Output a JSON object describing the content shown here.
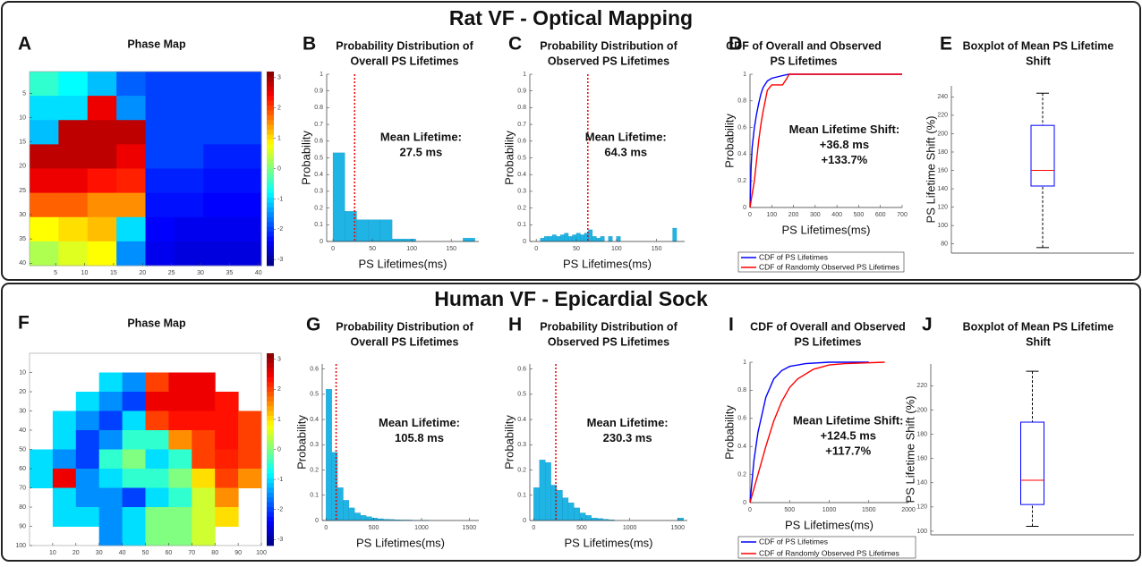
{
  "sections": [
    "Rat VF - Optical Mapping",
    "Human VF - Epicardial Sock"
  ],
  "chart_data": [
    {
      "type": "heatmap",
      "panel_label": "A",
      "title": [
        "Phase Map"
      ],
      "xlim": [
        0.5,
        40.5
      ],
      "ylim": [
        0.5,
        40.5
      ],
      "xticks": [
        5,
        10,
        15,
        20,
        25,
        30,
        35,
        40
      ],
      "yticks": [
        5,
        10,
        15,
        20,
        25,
        30,
        35,
        40
      ],
      "clim": [
        -3.2,
        3.2
      ],
      "colorbar_ticks": [
        -3,
        -2,
        -1,
        0,
        1,
        2,
        3
      ],
      "values": [
        [
          -0.5,
          -0.8,
          -1.2,
          -1.8,
          -2,
          -2,
          -2,
          -2
        ],
        [
          -1,
          -1,
          2.5,
          -1.5,
          -2,
          -2,
          -2,
          -2
        ],
        [
          -1.2,
          2.8,
          2.8,
          2.8,
          -2,
          -2,
          -2,
          -2
        ],
        [
          2.8,
          2.8,
          2.8,
          2.5,
          -2,
          -2,
          -2.2,
          -2.2
        ],
        [
          2.5,
          2.5,
          2.3,
          2.2,
          -2.2,
          -2.2,
          -2.3,
          -2.3
        ],
        [
          1.8,
          1.8,
          1.5,
          1.5,
          -2.3,
          -2.3,
          -2.4,
          -2.4
        ],
        [
          0.8,
          1,
          1.2,
          -1,
          -2.4,
          -2.5,
          -2.5,
          -2.5
        ],
        [
          0.3,
          0.6,
          0.8,
          -1.5,
          -2.5,
          -2.6,
          -2.6,
          -2.6
        ]
      ]
    },
    {
      "type": "histogram",
      "panel_label": "B",
      "title": [
        "Probability Distribution of",
        "Overall PS Lifetimes"
      ],
      "xlabel": "PS Lifetimes(ms)",
      "ylabel": "Probability",
      "color": "#1fb4e4",
      "bins": [
        0,
        15,
        30,
        45,
        60,
        75,
        90,
        105,
        120,
        135,
        150,
        165,
        180
      ],
      "values": [
        0.53,
        0.18,
        0.13,
        0.13,
        0.13,
        0.015,
        0.015,
        0,
        0,
        0,
        0,
        0.02
      ],
      "xlim": [
        -8,
        185
      ],
      "xticks": [
        0,
        50,
        100,
        150
      ],
      "ylim": [
        0,
        1
      ],
      "yticks": [
        0,
        0.1,
        0.2,
        0.3,
        0.4,
        0.5,
        0.6,
        0.7,
        0.8,
        0.9,
        1
      ],
      "mean": {
        "value": 27.5,
        "label": "27.5 ms"
      },
      "annotation": "Mean Lifetime:"
    },
    {
      "type": "histogram",
      "panel_label": "C",
      "title": [
        "Probability Distribution of",
        "Observed PS Lifetimes"
      ],
      "xlabel": "PS Lifetimes(ms)",
      "ylabel": "Probability",
      "color": "#1fb4e4",
      "bins": [
        0,
        5,
        10,
        15,
        20,
        25,
        30,
        35,
        40,
        45,
        50,
        55,
        60,
        65,
        70,
        75,
        80,
        85,
        90,
        95,
        100,
        105,
        110,
        115,
        120,
        125,
        130,
        135,
        140,
        145,
        150,
        155,
        160,
        165,
        170,
        175,
        180
      ],
      "values": [
        0,
        0.02,
        0.03,
        0.03,
        0.04,
        0.03,
        0.04,
        0.05,
        0.03,
        0.04,
        0.05,
        0.04,
        0.05,
        0.07,
        0.03,
        0.02,
        0.03,
        0,
        0.03,
        0,
        0.03,
        0,
        0,
        0,
        0,
        0,
        0,
        0,
        0,
        0,
        0,
        0,
        0,
        0,
        0.08,
        0
      ],
      "xlim": [
        -8,
        185
      ],
      "xticks": [
        0,
        50,
        100,
        150
      ],
      "ylim": [
        0,
        1
      ],
      "yticks": [
        0,
        0.1,
        0.2,
        0.3,
        0.4,
        0.5,
        0.6,
        0.7,
        0.8,
        0.9,
        1
      ],
      "mean": {
        "value": 64.3,
        "label": "64.3 ms"
      },
      "annotation": "Mean Lifetime:"
    },
    {
      "type": "line",
      "panel_label": "D",
      "title": [
        "CDF of Overall and Observed",
        "PS Lifetimes"
      ],
      "xlabel": "PS Lifetimes(ms)",
      "ylabel": "Probability",
      "xlim": [
        0,
        700
      ],
      "xticks": [
        0,
        100,
        200,
        300,
        400,
        500,
        600,
        700
      ],
      "ylim": [
        0,
        1
      ],
      "yticks": [
        0,
        0.2,
        0.4,
        0.6,
        0.8,
        1
      ],
      "series": [
        {
          "name": "CDF of PS Lifetimes",
          "color": "#0000ff",
          "x": [
            0,
            5,
            10,
            20,
            30,
            40,
            50,
            60,
            80,
            100,
            150,
            180,
            700
          ],
          "values": [
            0,
            0.3,
            0.45,
            0.6,
            0.7,
            0.78,
            0.85,
            0.9,
            0.95,
            0.97,
            0.99,
            1,
            1
          ]
        },
        {
          "name": "CDF of Randomly Observed PS Lifetimes",
          "color": "#ff0000",
          "x": [
            0,
            10,
            20,
            30,
            40,
            50,
            60,
            70,
            80,
            100,
            120,
            150,
            170,
            180,
            700
          ],
          "values": [
            0,
            0.1,
            0.2,
            0.35,
            0.5,
            0.62,
            0.72,
            0.8,
            0.88,
            0.92,
            0.92,
            0.92,
            0.97,
            1,
            1
          ]
        }
      ],
      "annotation": [
        "Mean Lifetime Shift:",
        "+36.8 ms",
        "+133.7%"
      ]
    },
    {
      "type": "box",
      "panel_label": "E",
      "title": [
        "Boxplot of Mean PS Lifetime",
        "Shift"
      ],
      "ylabel": "PS Lifetime Shift (%)",
      "ylim": [
        70,
        252
      ],
      "yticks": [
        80,
        100,
        120,
        140,
        160,
        180,
        200,
        220,
        240
      ],
      "color": "#0000ff",
      "median_color": "#ff0000",
      "stats": {
        "min": 76,
        "q1": 143,
        "median": 160,
        "q3": 209,
        "max": 244
      }
    },
    {
      "type": "heatmap",
      "panel_label": "F",
      "title": [
        "Phase Map"
      ],
      "xlim": [
        0,
        100
      ],
      "ylim": [
        0,
        100
      ],
      "xticks": [
        10,
        20,
        30,
        40,
        50,
        60,
        70,
        80,
        90,
        100
      ],
      "yticks": [
        10,
        20,
        30,
        40,
        50,
        60,
        70,
        80,
        90,
        100
      ],
      "clim": [
        -3.2,
        3.2
      ],
      "colorbar_ticks": [
        -3,
        -2,
        -1,
        0,
        1,
        2,
        3
      ],
      "values": [
        [
          null,
          null,
          null,
          null,
          null,
          null,
          null,
          null,
          null,
          null
        ],
        [
          null,
          null,
          null,
          -1,
          -1.5,
          2,
          2.5,
          2.5,
          null,
          null
        ],
        [
          null,
          null,
          -1,
          -1.5,
          -2,
          2.5,
          2.5,
          2.5,
          2.3,
          null
        ],
        [
          null,
          -1,
          -1.5,
          -2,
          -1,
          2,
          2.3,
          2.3,
          2.3,
          2
        ],
        [
          null,
          -1,
          -2,
          -1.5,
          -0.5,
          -0.5,
          1.5,
          2,
          2.3,
          2
        ],
        [
          -1,
          -1.5,
          -2,
          -0.5,
          0,
          -1,
          -0.5,
          2,
          2.2,
          2
        ],
        [
          -1,
          2.5,
          -1.5,
          -1,
          -0.5,
          -0.5,
          0,
          1,
          2,
          1.5
        ],
        [
          null,
          -1,
          -1.5,
          -1.5,
          -2,
          -1,
          -0.5,
          0.5,
          1.5,
          null
        ],
        [
          null,
          -1,
          -1,
          -1.5,
          -1,
          0,
          0,
          0.5,
          1,
          null
        ],
        [
          null,
          null,
          null,
          -1.5,
          -1,
          0,
          0,
          0.5,
          null,
          null
        ]
      ]
    },
    {
      "type": "histogram",
      "panel_label": "G",
      "title": [
        "Probability Distribution of",
        "Overall PS Lifetimes"
      ],
      "xlabel": "PS Lifetimes(ms)",
      "ylabel": "Probability",
      "color": "#1fb4e4",
      "bins": [
        0,
        60,
        120,
        180,
        240,
        300,
        360,
        420,
        480,
        540,
        600,
        660,
        720,
        780,
        840,
        900,
        960,
        1020,
        1080,
        1140,
        1200
      ],
      "values": [
        0.52,
        0.27,
        0.13,
        0.08,
        0.05,
        0.03,
        0.02,
        0.015,
        0.01,
        0.007,
        0.005,
        0.004,
        0.003,
        0.002,
        0.002,
        0.001,
        0.001,
        0.001,
        0,
        0
      ],
      "xlim": [
        -40,
        1600
      ],
      "xticks": [
        0,
        500,
        1000,
        1500
      ],
      "ylim": [
        0,
        0.62
      ],
      "yticks": [
        0,
        0.1,
        0.2,
        0.3,
        0.4,
        0.5,
        0.6
      ],
      "mean": {
        "value": 105.8,
        "label": "105.8 ms"
      },
      "annotation": "Mean Lifetime:"
    },
    {
      "type": "histogram",
      "panel_label": "H",
      "title": [
        "Probability Distribution of",
        "Observed PS Lifetimes"
      ],
      "xlabel": "PS Lifetimes(ms)",
      "ylabel": "Probability",
      "color": "#1fb4e4",
      "bins": [
        0,
        60,
        120,
        180,
        240,
        300,
        360,
        420,
        480,
        540,
        600,
        660,
        720,
        780,
        840,
        900,
        960,
        1020,
        1080,
        1140,
        1200,
        1260,
        1320,
        1380,
        1440,
        1500,
        1560
      ],
      "values": [
        0.13,
        0.24,
        0.23,
        0.14,
        0.12,
        0.09,
        0.07,
        0.05,
        0.03,
        0.02,
        0.01,
        0.008,
        0.005,
        0.003,
        0,
        0,
        0,
        0,
        0,
        0,
        0,
        0,
        0,
        0,
        0,
        0.01
      ],
      "xlim": [
        -40,
        1600
      ],
      "xticks": [
        0,
        500,
        1000,
        1500
      ],
      "ylim": [
        0,
        0.62
      ],
      "yticks": [
        0,
        0.1,
        0.2,
        0.3,
        0.4,
        0.5,
        0.6
      ],
      "mean": {
        "value": 230.3,
        "label": "230.3 ms"
      },
      "annotation": "Mean Lifetime:"
    },
    {
      "type": "line",
      "panel_label": "I",
      "title": [
        "CDF of Overall and Observed",
        "PS Lifetimes"
      ],
      "xlabel": "PS Lifetimes(ms)",
      "ylabel": "Probability",
      "xlim": [
        0,
        2000
      ],
      "xticks": [
        0,
        500,
        1000,
        1500,
        2000
      ],
      "ylim": [
        0,
        1
      ],
      "yticks": [
        0,
        0.2,
        0.4,
        0.6,
        0.8,
        1
      ],
      "series": [
        {
          "name": "CDF of PS Lifetimes",
          "color": "#0000ff",
          "x": [
            0,
            50,
            100,
            200,
            300,
            400,
            500,
            700,
            1000,
            1500
          ],
          "values": [
            0,
            0.3,
            0.5,
            0.75,
            0.88,
            0.94,
            0.97,
            0.99,
            1,
            1
          ]
        },
        {
          "name": "CDF of Randomly Observed PS Lifetimes",
          "color": "#ff0000",
          "x": [
            0,
            100,
            200,
            300,
            400,
            500,
            600,
            800,
            1000,
            1200,
            1700
          ],
          "values": [
            0,
            0.2,
            0.4,
            0.58,
            0.72,
            0.82,
            0.88,
            0.95,
            0.98,
            0.99,
            1
          ]
        }
      ],
      "annotation": [
        "Mean Lifetime Shift:",
        "+124.5 ms",
        "+117.7%"
      ]
    },
    {
      "type": "box",
      "panel_label": "J",
      "title": [
        "Boxplot of Mean PS Lifetime",
        "Shift"
      ],
      "ylabel": "PS Lifetime Shift (%)",
      "ylim": [
        97,
        238
      ],
      "yticks": [
        100,
        120,
        140,
        160,
        180,
        200,
        220
      ],
      "color": "#0000ff",
      "median_color": "#ff0000",
      "stats": {
        "min": 104,
        "q1": 122,
        "median": 142,
        "q3": 190,
        "max": 232
      }
    }
  ]
}
